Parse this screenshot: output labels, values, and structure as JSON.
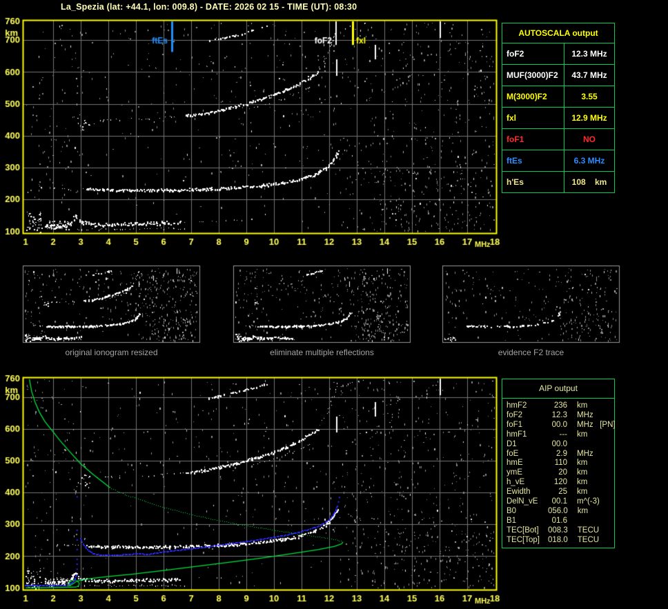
{
  "header": {
    "title": "La_Spezia (lat: +44.1, lon: 009.8) - DATE: 2026 02 15 - TIME (UT): 08:30"
  },
  "autoscala_table": {
    "header": "AUTOSCALA output",
    "rows": [
      {
        "label": "foF2",
        "value": "12.3 MHz",
        "color": "#FFFFFF"
      },
      {
        "label": "MUF(3000)F2",
        "value": "43.7 MHz",
        "color": "#FFFFFF"
      },
      {
        "label": "M(3000)F2",
        "value": "3.55",
        "color": "#FFFF00"
      },
      {
        "label": "fxl",
        "value": "12.9 MHz",
        "color": "#FFFF00"
      },
      {
        "label": "foF1",
        "value": "NO",
        "color": "#FF2A2A"
      },
      {
        "label": "ftEs",
        "value": "6.3 MHz",
        "color": "#2E8CFF"
      },
      {
        "label": "h'Es",
        "value": "108    km",
        "color": "#F0E68C"
      }
    ]
  },
  "aip_table": {
    "header": "AIP output",
    "rows": [
      {
        "label": "hmF2",
        "value": "236",
        "unit": "km"
      },
      {
        "label": "foF2",
        "value": "12.3",
        "unit": "MHz"
      },
      {
        "label": "foF1",
        "value": "00.0",
        "unit": "MHz   [PN]"
      },
      {
        "label": "hmF1",
        "value": "---",
        "unit": "km"
      },
      {
        "label": "D1",
        "value": "00.0",
        "unit": ""
      },
      {
        "label": "foE",
        "value": "2.9",
        "unit": "MHz"
      },
      {
        "label": "hmE",
        "value": "110",
        "unit": "km"
      },
      {
        "label": "ymE",
        "value": "20",
        "unit": "km"
      },
      {
        "label": "h_vE",
        "value": "120",
        "unit": "km"
      },
      {
        "label": "Ewidth",
        "value": "25",
        "unit": "km"
      },
      {
        "label": "DelN_vE",
        "value": "00.1",
        "unit": "m^(-3)"
      },
      {
        "label": "B0",
        "value": "056.0",
        "unit": "km"
      },
      {
        "label": "B1",
        "value": "01.6",
        "unit": ""
      },
      {
        "label": "TEC[Bot]",
        "value": "008.3",
        "unit": "TECU"
      },
      {
        "label": "TEC[Top]",
        "value": "018.0",
        "unit": "TECU"
      }
    ]
  },
  "chart_data": {
    "type": "scatter",
    "description": "Ionogram (virtual height km vs sounding frequency MHz), shown twice: raw autoscaled (top) and with AIP model profile overlay (bottom), plus three processing-step thumbnails.",
    "x_axis": {
      "label": "MHz",
      "min": 1,
      "max": 18,
      "ticks": [
        1,
        2,
        3,
        4,
        5,
        6,
        7,
        8,
        9,
        10,
        11,
        12,
        13,
        14,
        15,
        16,
        17,
        18
      ]
    },
    "y_axis": {
      "label": "km",
      "min": 100,
      "max": 760,
      "ticks": [
        760,
        700,
        600,
        500,
        400,
        300,
        200,
        100
      ]
    },
    "colors": {
      "border": "#FFFF00",
      "grid": "#777777",
      "tick_text": "#FFFF58",
      "echo": "#FFFFFF",
      "noise": "#8A8A8A",
      "profile_green": "#00E53C",
      "restored_blue": "#2B2BFF",
      "ftes_blue": "#1E90FF"
    },
    "annotations": [
      {
        "label": "ftEs",
        "mhz": 6.3,
        "color": "#1E90FF",
        "side": "left",
        "lw": 3,
        "line_to_km": 664,
        "label_km": 697
      },
      {
        "label": "foF2",
        "mhz": 12.25,
        "color": "#FFFFFF",
        "side": "left",
        "lw": 2,
        "line_to_km": 686,
        "label_km": 697
      },
      {
        "label": "fxl",
        "mhz": 12.85,
        "color": "#FFFF00",
        "side": "right",
        "lw": 3,
        "line_to_km": 686,
        "label_km": 697
      }
    ],
    "traces": {
      "es_blob": {
        "pts": [
          [
            1.7,
            118
          ],
          [
            2.2,
            120
          ],
          [
            2.6,
            124
          ],
          [
            2.78,
            148
          ],
          [
            3.0,
            131
          ],
          [
            3.5,
            123
          ],
          [
            4.2,
            123
          ],
          [
            5.0,
            125
          ],
          [
            5.8,
            127
          ],
          [
            6.6,
            129
          ]
        ],
        "w": 5,
        "p": 0.95,
        "step": 1.6,
        "s": 2
      },
      "e_low": {
        "pts": [
          [
            2.9,
            107
          ],
          [
            4.2,
            108
          ],
          [
            5.5,
            109
          ],
          [
            6.8,
            110
          ]
        ],
        "w": 2,
        "p": 0.45,
        "step": 2.2,
        "s": 1
      },
      "e_tail": {
        "pts": [
          [
            6.7,
            130
          ],
          [
            8.0,
            134
          ],
          [
            9.3,
            139
          ]
        ],
        "w": 2,
        "p": 0.22,
        "step": 2.5,
        "s": 1,
        "c": "#CFCFCF"
      },
      "f1_sparse": {
        "pts": [
          [
            1.95,
            237
          ],
          [
            3.2,
            235
          ]
        ],
        "w": 2,
        "p": 0.3,
        "step": 2.5,
        "s": 1
      },
      "f1_main": {
        "pts": [
          [
            3.2,
            233
          ],
          [
            4.5,
            231
          ],
          [
            6.0,
            231
          ],
          [
            7.5,
            234
          ],
          [
            8.5,
            238
          ],
          [
            9.5,
            245
          ],
          [
            10.3,
            254
          ],
          [
            11.0,
            266
          ],
          [
            11.5,
            281
          ],
          [
            11.9,
            301
          ],
          [
            12.15,
            325
          ],
          [
            12.32,
            352
          ]
        ],
        "w": 3.5,
        "p": 0.92,
        "step": 1.5,
        "s": 2
      },
      "f1_double": {
        "pts": [
          [
            9.9,
            246
          ],
          [
            10.8,
            257
          ],
          [
            11.4,
            271
          ]
        ],
        "w": 2,
        "p": 0.35,
        "step": 2,
        "s": 1
      },
      "f2h_flat": {
        "pts": [
          [
            3.3,
            448
          ],
          [
            4.6,
            452
          ],
          [
            5.8,
            457
          ],
          [
            6.8,
            462
          ]
        ],
        "w": 2.5,
        "p": 0.3,
        "step": 2.5,
        "s": 1
      },
      "f2h_main": {
        "pts": [
          [
            6.8,
            464
          ],
          [
            7.6,
            473
          ],
          [
            8.4,
            488
          ],
          [
            9.2,
            507
          ],
          [
            10.0,
            529
          ],
          [
            10.7,
            555
          ],
          [
            11.2,
            580
          ],
          [
            11.6,
            601
          ]
        ],
        "w": 3.5,
        "p": 0.9,
        "step": 1.5,
        "s": 2
      },
      "f2h_dbl": {
        "pts": [
          [
            9.3,
            489
          ],
          [
            10.1,
            509
          ],
          [
            10.9,
            536
          ],
          [
            11.35,
            556
          ]
        ],
        "w": 2,
        "p": 0.4,
        "step": 2,
        "s": 1
      },
      "f2h_top": {
        "pts": [
          [
            11.65,
            608
          ],
          [
            11.95,
            655
          ],
          [
            12.15,
            700
          ],
          [
            12.3,
            748
          ]
        ],
        "w": 2.5,
        "p": 0.4,
        "step": 2.2,
        "s": 1
      },
      "f3": {
        "pts": [
          [
            7.6,
            698
          ],
          [
            8.6,
            716
          ],
          [
            9.7,
            744
          ]
        ],
        "w": 3,
        "p": 0.55,
        "step": 1.8,
        "s": 2
      },
      "fx_top": {
        "pts": [
          [
            12.35,
            733
          ],
          [
            12.9,
            747
          ],
          [
            13.4,
            757
          ]
        ],
        "w": 2.5,
        "p": 0.4,
        "step": 2.2,
        "s": 1
      }
    },
    "streaks": [
      {
        "mhz": 16.0,
        "km": [
          705,
          758
        ]
      },
      {
        "mhz": 13.65,
        "km": [
          638,
          685
        ]
      },
      {
        "mhz": 12.25,
        "km": [
          588,
          640
        ]
      }
    ],
    "clusters": [
      {
        "x": [
          1.0,
          1.6
        ],
        "y": [
          96,
          162
        ],
        "n": 48
      },
      {
        "x": [
          1.7,
          2.6
        ],
        "y": [
          108,
          134
        ],
        "n": 55
      },
      {
        "x": [
          2.85,
          3.35
        ],
        "y": [
          415,
          458
        ],
        "n": 13
      }
    ],
    "noise_zones": [
      {
        "x": [
          1,
          18
        ],
        "y": [
          100,
          756
        ],
        "n": 240
      },
      {
        "x": [
          12.4,
          18
        ],
        "y": [
          100,
          756
        ],
        "n": 420
      },
      {
        "x": [
          8,
          12.4
        ],
        "y": [
          280,
          756
        ],
        "n": 100
      },
      {
        "x": [
          1,
          3.2
        ],
        "y": [
          140,
          756
        ],
        "n": 80
      },
      {
        "x": [
          3.4,
          8
        ],
        "y": [
          470,
          756
        ],
        "n": 55
      },
      {
        "x": [
          13.5,
          18
        ],
        "y": [
          100,
          300
        ],
        "n": 90
      }
    ],
    "profile_green": {
      "color": "#00E53C",
      "solid_topside": [
        [
          1.14,
          758
        ],
        [
          1.22,
          720
        ],
        [
          1.35,
          685
        ],
        [
          1.5,
          655
        ],
        [
          1.7,
          625
        ],
        [
          1.95,
          598
        ],
        [
          2.25,
          565
        ],
        [
          2.6,
          530
        ],
        [
          3.0,
          492
        ],
        [
          3.45,
          458
        ],
        [
          3.9,
          428
        ],
        [
          4.05,
          417
        ]
      ],
      "dotted_topside": [
        [
          4.05,
          417
        ],
        [
          4.6,
          395
        ],
        [
          5.3,
          374
        ],
        [
          6.1,
          352
        ],
        [
          7.0,
          332
        ],
        [
          8.0,
          313
        ],
        [
          9.0,
          297
        ],
        [
          10.0,
          283
        ],
        [
          11.0,
          269
        ],
        [
          11.8,
          259
        ],
        [
          12.3,
          251
        ],
        [
          12.5,
          246
        ]
      ],
      "solid_bottomside": [
        [
          12.5,
          246
        ],
        [
          12.45,
          240
        ],
        [
          12.2,
          232
        ],
        [
          11.6,
          222
        ],
        [
          10.7,
          210
        ],
        [
          9.6,
          196
        ],
        [
          8.4,
          182
        ],
        [
          7.2,
          169
        ],
        [
          6.0,
          156
        ],
        [
          4.9,
          145
        ],
        [
          4.0,
          137
        ],
        [
          3.4,
          131
        ],
        [
          3.0,
          126
        ],
        [
          2.85,
          122
        ]
      ],
      "e_loop": [
        [
          2.85,
          122
        ],
        [
          2.72,
          114
        ],
        [
          2.6,
          108
        ],
        [
          2.54,
          113
        ],
        [
          2.6,
          121
        ],
        [
          2.75,
          126
        ],
        [
          2.88,
          123
        ],
        [
          2.95,
          115
        ],
        [
          2.92,
          108
        ],
        [
          2.85,
          105
        ]
      ],
      "tail": [
        [
          2.85,
          104
        ],
        [
          2.3,
          103
        ],
        [
          1.6,
          102
        ],
        [
          1.0,
          102
        ]
      ]
    },
    "restored_blue": {
      "color": "#2B2BFF",
      "es_segment": [
        [
          1.0,
          107
        ],
        [
          1.5,
          107
        ],
        [
          2.0,
          107
        ],
        [
          2.45,
          108
        ],
        [
          2.6,
          111
        ],
        [
          2.72,
          116
        ],
        [
          2.8,
          125
        ],
        [
          2.86,
          140
        ]
      ],
      "f_branch": [
        [
          3.02,
          256
        ],
        [
          3.1,
          238
        ],
        [
          3.25,
          220
        ],
        [
          3.45,
          208
        ],
        [
          3.7,
          203
        ],
        [
          4.1,
          202
        ],
        [
          4.5,
          204
        ],
        [
          5.0,
          207
        ],
        [
          5.5,
          206
        ],
        [
          6.0,
          213
        ],
        [
          6.5,
          218
        ],
        [
          7.0,
          223
        ],
        [
          7.5,
          228
        ],
        [
          8.0,
          234
        ],
        [
          8.5,
          240
        ],
        [
          9.0,
          246
        ],
        [
          9.5,
          252
        ],
        [
          10.0,
          259
        ],
        [
          10.5,
          267
        ],
        [
          11.0,
          277
        ],
        [
          11.4,
          287
        ],
        [
          11.7,
          297
        ],
        [
          12.0,
          313
        ],
        [
          12.15,
          328
        ],
        [
          12.25,
          342
        ],
        [
          12.3,
          358
        ]
      ],
      "isolated_dots": [
        [
          2.87,
          160
        ],
        [
          2.87,
          176
        ],
        [
          2.87,
          191
        ],
        [
          2.87,
          222
        ],
        [
          2.87,
          252
        ],
        [
          2.87,
          283
        ],
        [
          2.87,
          388
        ],
        [
          12.34,
          372
        ],
        [
          12.37,
          386
        ]
      ]
    },
    "thumbnails": [
      {
        "caption": "original ionogram resized",
        "traces": [
          "es_blob",
          "e_low",
          "f1_sparse",
          "f1_main",
          "f1_double",
          "f2h_flat",
          "f2h_main",
          "f2h_dbl",
          "f2h_top",
          "f3"
        ],
        "use_clusters": true,
        "noise": 0.5,
        "p_scale": 0.85
      },
      {
        "caption": "eliminate multiple reflections",
        "traces": [
          "es_blob",
          "e_low",
          "f1_sparse",
          "f1_main",
          "f1_double",
          "f3"
        ],
        "use_clusters": true,
        "noise": 0.5,
        "p_scale": 0.85
      },
      {
        "caption": "evidence F2 trace",
        "traces": [
          "f1_main"
        ],
        "use_clusters": false,
        "noise": 0.35,
        "p_scale": 0.4,
        "extra_clusters": [
          {
            "x": [
              1.0,
              2.1
            ],
            "y": [
              98,
              135
            ],
            "n": 18
          },
          {
            "x": [
              3.2,
              3.7
            ],
            "y": [
              230,
              240
            ],
            "n": 8
          },
          {
            "x": [
              4.3,
              5.0
            ],
            "y": [
              233,
              241
            ],
            "n": 9
          }
        ]
      }
    ]
  }
}
